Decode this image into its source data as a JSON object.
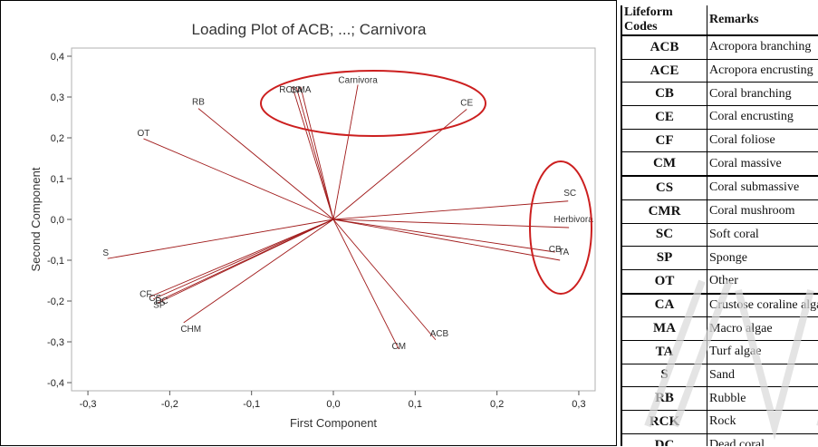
{
  "chart_data": {
    "type": "scatter",
    "subtype": "loading-plot",
    "title": "Loading Plot of ACB; ...; Carnivora",
    "xlabel": "First Component",
    "ylabel": "Second Component",
    "xlim": [
      -0.32,
      0.32
    ],
    "ylim": [
      -0.42,
      0.42
    ],
    "xticks": [
      "-0,3",
      "-0,2",
      "-0,1",
      "0,0",
      "0,1",
      "0,2",
      "0,3"
    ],
    "xtick_values": [
      -0.3,
      -0.2,
      -0.1,
      0.0,
      0.1,
      0.2,
      0.3
    ],
    "yticks": [
      "-0,4",
      "-0,3",
      "-0,2",
      "-0,1",
      "0,0",
      "0,1",
      "0,2",
      "0,3",
      "0,4"
    ],
    "ytick_values": [
      -0.4,
      -0.3,
      -0.2,
      -0.1,
      0.0,
      0.1,
      0.2,
      0.3,
      0.4
    ],
    "grid": false,
    "line_color": "#a01a1a",
    "highlight_color": "#cc1f1f",
    "loadings": [
      {
        "label": "RCK",
        "x": -0.05,
        "y": 0.325
      },
      {
        "label": "CA",
        "x": -0.045,
        "y": 0.323
      },
      {
        "label": "MA",
        "x": -0.04,
        "y": 0.325
      },
      {
        "label": "Carnivora",
        "x": 0.03,
        "y": 0.33
      },
      {
        "label": "CE",
        "x": 0.163,
        "y": 0.27
      },
      {
        "label": "RB",
        "x": -0.165,
        "y": 0.272
      },
      {
        "label": "OT",
        "x": -0.232,
        "y": 0.198
      },
      {
        "label": "SC",
        "x": 0.287,
        "y": 0.045
      },
      {
        "label": "Herbivora",
        "x": 0.288,
        "y": -0.02
      },
      {
        "label": "TA",
        "x": 0.277,
        "y": -0.1
      },
      {
        "label": "CB",
        "x": 0.271,
        "y": -0.08
      },
      {
        "label": "CM",
        "x": 0.08,
        "y": -0.318
      },
      {
        "label": "ACB",
        "x": 0.125,
        "y": -0.295
      },
      {
        "label": "S",
        "x": -0.276,
        "y": -0.096
      },
      {
        "label": "CF",
        "x": -0.225,
        "y": -0.19
      },
      {
        "label": "CS",
        "x": -0.22,
        "y": -0.195
      },
      {
        "label": "SP",
        "x": -0.215,
        "y": -0.205
      },
      {
        "label": "DC",
        "x": -0.212,
        "y": -0.198
      },
      {
        "label": "CHM",
        "x": -0.183,
        "y": -0.253
      }
    ],
    "label_font_size_ratio": 1,
    "highlights": [
      "ellipse around RCK, CA, MA, Carnivora, CE",
      "ellipse around SC, Herbivora, TA, CB"
    ]
  },
  "table": {
    "headers": [
      "Lifeform Codes",
      "Remarks"
    ],
    "rows": [
      {
        "code": "ACB",
        "remark": "Acropora branching"
      },
      {
        "code": "ACE",
        "remark": "Acropora encrusting"
      },
      {
        "code": "CB",
        "remark": "Coral branching"
      },
      {
        "code": "CE",
        "remark": "Coral encrusting"
      },
      {
        "code": "CF",
        "remark": "Coral foliose"
      },
      {
        "code": "CM",
        "remark": "Coral massive"
      },
      {
        "code": "CS",
        "remark": "Coral submassive"
      },
      {
        "code": "CMR",
        "remark": "Coral mushroom"
      },
      {
        "code": "SC",
        "remark": "Soft coral"
      },
      {
        "code": "SP",
        "remark": "Sponge"
      },
      {
        "code": "OT",
        "remark": "Other"
      },
      {
        "code": "CA",
        "remark": "Crustose coraline algae"
      },
      {
        "code": "MA",
        "remark": "Macro algae"
      },
      {
        "code": "TA",
        "remark": "Turf algae"
      },
      {
        "code": "S",
        "remark": "Sand"
      },
      {
        "code": "RB",
        "remark": "Rubble"
      },
      {
        "code": "RCK",
        "remark": "Rock"
      },
      {
        "code": "DC",
        "remark": "Dead coral"
      }
    ]
  }
}
